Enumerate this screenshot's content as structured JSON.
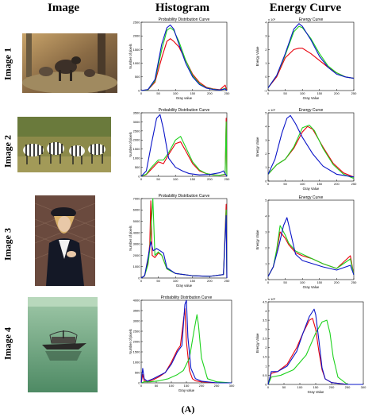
{
  "headers": {
    "image": "Image",
    "histogram": "Histogram",
    "energy": "Energy Curve"
  },
  "rows": [
    {
      "label": "Image 1",
      "photo": "wolves",
      "hist_title": "Probability Distribution Curve",
      "hist_xlabel": "Gray value",
      "hist_ylabel": "Number of pixels",
      "energy_title": "Energy Curve",
      "energy_xlabel": "Gray Value",
      "energy_ylabel": "Energy Value",
      "energy_exp": "x 10⁶"
    },
    {
      "label": "Image 2",
      "photo": "zebras",
      "hist_title": "Probability Distribution Curve",
      "hist_xlabel": "",
      "hist_ylabel": "Number of pixels",
      "energy_title": "Energy Curve",
      "energy_xlabel": "Gray Value",
      "energy_ylabel": "Energy Value",
      "energy_exp": "x 10⁶"
    },
    {
      "label": "Image 3",
      "photo": "portrait",
      "hist_title": "Probability Distribution Curve",
      "hist_xlabel": "Gray value",
      "hist_ylabel": "Number of pixels",
      "energy_title": "Energy Curve",
      "energy_xlabel": "Gray Value",
      "energy_ylabel": "Energy Value",
      "energy_exp": ""
    },
    {
      "label": "Image 4",
      "photo": "boat",
      "hist_title": "Probability Distribution Curve",
      "hist_xlabel": "Gray value",
      "hist_ylabel": "Number of pixels",
      "energy_title": "",
      "energy_xlabel": "Gray Value",
      "energy_ylabel": "Energy Value",
      "energy_exp": "x 10⁶"
    }
  ],
  "caption": "(A)",
  "colors": {
    "red": "#e8000b",
    "green": "#1ed21e",
    "blue": "#0a14c8"
  },
  "chart_data": [
    {
      "type": "line",
      "panel": "Image 1 histogram",
      "title": "Probability Distribution Curve",
      "xlabel": "Gray value",
      "ylabel": "Number of pixels",
      "xlim": [
        0,
        250
      ],
      "ylim": [
        0,
        2500
      ],
      "xticks": [
        0,
        50,
        100,
        150,
        200,
        250
      ],
      "yticks": [
        0,
        500,
        1000,
        1500,
        2000,
        2500
      ],
      "series": [
        {
          "color": "red",
          "x": [
            0,
            20,
            40,
            60,
            75,
            85,
            95,
            110,
            130,
            150,
            170,
            190,
            210,
            230,
            245,
            250
          ],
          "y": [
            0,
            30,
            300,
            1200,
            1800,
            1900,
            1800,
            1600,
            1100,
            600,
            300,
            120,
            60,
            30,
            200,
            0
          ]
        },
        {
          "color": "green",
          "x": [
            0,
            20,
            40,
            60,
            75,
            85,
            95,
            110,
            130,
            150,
            170,
            190,
            210,
            230,
            245,
            250
          ],
          "y": [
            0,
            30,
            350,
            1500,
            2200,
            2300,
            2200,
            1800,
            1100,
            550,
            250,
            100,
            50,
            20,
            80,
            0
          ]
        },
        {
          "color": "blue",
          "x": [
            0,
            20,
            40,
            60,
            75,
            85,
            95,
            110,
            130,
            150,
            170,
            190,
            210,
            230,
            245,
            250
          ],
          "y": [
            0,
            40,
            400,
            1700,
            2300,
            2400,
            2250,
            1700,
            1000,
            500,
            220,
            90,
            40,
            20,
            60,
            0
          ]
        }
      ]
    },
    {
      "type": "line",
      "panel": "Image 1 energy",
      "title": "Energy Curve",
      "xlabel": "Gray Value",
      "ylabel": "Energy Value",
      "xlim": [
        0,
        250
      ],
      "ylim": [
        -1,
        4
      ],
      "xticks": [
        0,
        50,
        100,
        150,
        200,
        250
      ],
      "yticks": [
        -1,
        0,
        1,
        2,
        3,
        4
      ],
      "series": [
        {
          "color": "red",
          "x": [
            0,
            25,
            50,
            75,
            90,
            100,
            125,
            150,
            175,
            200,
            225,
            250
          ],
          "y": [
            -0.8,
            0.0,
            1.4,
            2.0,
            2.1,
            2.1,
            1.7,
            1.2,
            0.7,
            0.3,
            0.0,
            -0.1
          ]
        },
        {
          "color": "green",
          "x": [
            0,
            25,
            50,
            75,
            90,
            100,
            125,
            150,
            175,
            200,
            225,
            250
          ],
          "y": [
            -0.8,
            0.1,
            1.6,
            3.3,
            3.7,
            3.6,
            2.8,
            1.7,
            0.8,
            0.3,
            0.0,
            -0.1
          ]
        },
        {
          "color": "blue",
          "x": [
            0,
            25,
            50,
            75,
            90,
            100,
            125,
            150,
            175,
            200,
            225,
            250
          ],
          "y": [
            -0.8,
            0.1,
            1.7,
            3.5,
            3.9,
            3.7,
            2.7,
            1.5,
            0.7,
            0.2,
            0.0,
            -0.1
          ]
        }
      ]
    },
    {
      "type": "line",
      "panel": "Image 2 histogram",
      "title": "Probability Distribution Curve",
      "xlabel": "",
      "ylabel": "Number of pixels",
      "xlim": [
        0,
        250
      ],
      "ylim": [
        0,
        3500
      ],
      "xticks": [
        0,
        50,
        100,
        150,
        200,
        250
      ],
      "yticks": [
        0,
        500,
        1000,
        1500,
        2000,
        2500,
        3000,
        3500
      ],
      "series": [
        {
          "color": "red",
          "x": [
            0,
            15,
            30,
            50,
            65,
            80,
            100,
            115,
            130,
            150,
            170,
            190,
            210,
            230,
            245,
            248,
            250
          ],
          "y": [
            0,
            100,
            400,
            800,
            700,
            1200,
            1800,
            1900,
            1400,
            700,
            300,
            150,
            80,
            60,
            100,
            3200,
            0
          ]
        },
        {
          "color": "green",
          "x": [
            0,
            15,
            30,
            50,
            65,
            80,
            100,
            115,
            130,
            150,
            170,
            190,
            210,
            230,
            245,
            248,
            250
          ],
          "y": [
            0,
            120,
            500,
            900,
            900,
            1300,
            2000,
            2200,
            1600,
            800,
            350,
            150,
            80,
            60,
            120,
            3000,
            0
          ]
        },
        {
          "color": "blue",
          "x": [
            0,
            15,
            30,
            45,
            55,
            65,
            80,
            100,
            120,
            140,
            170,
            200,
            230,
            240,
            250
          ],
          "y": [
            0,
            300,
            1800,
            3200,
            3400,
            2600,
            1000,
            500,
            300,
            150,
            80,
            100,
            200,
            300,
            0
          ]
        }
      ]
    },
    {
      "type": "line",
      "panel": "Image 2 energy",
      "title": "Energy Curve",
      "xlabel": "Gray Value",
      "ylabel": "Energy Value",
      "xlim": [
        0,
        250
      ],
      "ylim": [
        0,
        5
      ],
      "xticks": [
        0,
        50,
        100,
        150,
        200,
        250
      ],
      "yticks": [
        0,
        1,
        2,
        3,
        4,
        5
      ],
      "series": [
        {
          "color": "red",
          "x": [
            0,
            25,
            50,
            75,
            100,
            115,
            130,
            160,
            190,
            220,
            250
          ],
          "y": [
            0.5,
            1.2,
            1.6,
            2.4,
            3.6,
            4.0,
            3.8,
            2.5,
            1.3,
            0.6,
            0.3
          ]
        },
        {
          "color": "green",
          "x": [
            0,
            25,
            50,
            75,
            100,
            120,
            135,
            160,
            190,
            220,
            250
          ],
          "y": [
            0.5,
            1.2,
            1.6,
            2.5,
            3.9,
            4.1,
            3.7,
            2.4,
            1.2,
            0.5,
            0.2
          ]
        },
        {
          "color": "blue",
          "x": [
            0,
            20,
            40,
            55,
            65,
            80,
            100,
            130,
            160,
            200,
            250
          ],
          "y": [
            0.5,
            1.6,
            3.5,
            4.6,
            4.8,
            4.2,
            3.2,
            2.0,
            1.1,
            0.5,
            0.3
          ]
        }
      ]
    },
    {
      "type": "line",
      "panel": "Image 3 histogram",
      "title": "Probability Distribution Curve",
      "xlabel": "Gray value",
      "ylabel": "Number of pixels",
      "xlim": [
        0,
        250
      ],
      "ylim": [
        0,
        7000
      ],
      "xticks": [
        0,
        50,
        100,
        150,
        200,
        250
      ],
      "yticks": [
        0,
        1000,
        2000,
        3000,
        4000,
        5000,
        6000,
        7000
      ],
      "series": [
        {
          "color": "red",
          "x": [
            0,
            10,
            20,
            25,
            28,
            32,
            40,
            50,
            60,
            75,
            100,
            150,
            200,
            240,
            248,
            250
          ],
          "y": [
            0,
            200,
            1500,
            3000,
            6800,
            2000,
            1800,
            2200,
            2000,
            800,
            400,
            200,
            150,
            300,
            6500,
            0
          ]
        },
        {
          "color": "green",
          "x": [
            0,
            10,
            20,
            25,
            30,
            34,
            40,
            50,
            60,
            75,
            100,
            150,
            200,
            240,
            248,
            250
          ],
          "y": [
            0,
            200,
            1200,
            2500,
            5000,
            7000,
            2000,
            2300,
            2000,
            800,
            400,
            200,
            150,
            300,
            6000,
            0
          ]
        },
        {
          "color": "blue",
          "x": [
            0,
            10,
            20,
            28,
            35,
            45,
            55,
            65,
            75,
            100,
            150,
            200,
            240,
            248,
            250
          ],
          "y": [
            0,
            200,
            1800,
            3200,
            2400,
            2600,
            2400,
            2200,
            900,
            400,
            200,
            150,
            300,
            5500,
            0
          ]
        }
      ]
    },
    {
      "type": "line",
      "panel": "Image 3 energy",
      "title": "Energy Curve",
      "xlabel": "Gray Value",
      "ylabel": "Energy Value",
      "xlim": [
        0,
        250
      ],
      "ylim": [
        0,
        5
      ],
      "xticks": [
        0,
        50,
        100,
        150,
        200,
        250
      ],
      "yticks": [
        0,
        1,
        2,
        3,
        4,
        5
      ],
      "series": [
        {
          "color": "red",
          "x": [
            0,
            15,
            25,
            35,
            50,
            60,
            80,
            100,
            130,
            160,
            200,
            240,
            250
          ],
          "y": [
            0.2,
            0.8,
            1.8,
            3.0,
            2.6,
            2.2,
            1.7,
            1.5,
            1.3,
            1.0,
            0.7,
            1.5,
            0.3
          ]
        },
        {
          "color": "green",
          "x": [
            0,
            15,
            25,
            35,
            50,
            60,
            80,
            100,
            130,
            160,
            200,
            240,
            250
          ],
          "y": [
            0.2,
            0.8,
            1.9,
            3.4,
            2.8,
            2.3,
            1.8,
            1.6,
            1.3,
            1.0,
            0.7,
            1.3,
            0.3
          ]
        },
        {
          "color": "blue",
          "x": [
            0,
            15,
            30,
            45,
            55,
            65,
            80,
            100,
            130,
            160,
            200,
            240,
            250
          ],
          "y": [
            0.2,
            0.8,
            2.0,
            3.4,
            3.9,
            3.0,
            1.6,
            1.2,
            1.0,
            0.8,
            0.6,
            0.9,
            0.3
          ]
        }
      ]
    },
    {
      "type": "line",
      "panel": "Image 4 histogram",
      "title": "Probability Distribution Curve",
      "xlabel": "Gray value",
      "ylabel": "Number of pixels",
      "xlim": [
        0,
        300
      ],
      "ylim": [
        0,
        4000
      ],
      "xticks": [
        0,
        50,
        100,
        150,
        200,
        250,
        300
      ],
      "yticks": [
        0,
        500,
        1000,
        1500,
        2000,
        2500,
        3000,
        3500,
        4000
      ],
      "series": [
        {
          "color": "red",
          "x": [
            0,
            5,
            10,
            20,
            40,
            60,
            80,
            100,
            120,
            130,
            140,
            145,
            150,
            160,
            170,
            180,
            200,
            250,
            300
          ],
          "y": [
            0,
            400,
            100,
            50,
            150,
            300,
            500,
            1000,
            1600,
            1800,
            3000,
            3600,
            2000,
            600,
            200,
            100,
            50,
            0,
            0
          ]
        },
        {
          "color": "green",
          "x": [
            0,
            10,
            30,
            60,
            90,
            120,
            140,
            160,
            175,
            185,
            190,
            200,
            220,
            250,
            300
          ],
          "y": [
            0,
            50,
            50,
            100,
            200,
            400,
            600,
            1200,
            2500,
            3300,
            2800,
            1200,
            200,
            50,
            0
          ]
        },
        {
          "color": "blue",
          "x": [
            0,
            5,
            10,
            20,
            40,
            60,
            80,
            100,
            120,
            135,
            145,
            150,
            155,
            165,
            180,
            200,
            250,
            300
          ],
          "y": [
            0,
            700,
            200,
            80,
            200,
            350,
            500,
            900,
            1500,
            1800,
            3800,
            4000,
            2200,
            700,
            200,
            80,
            0,
            0
          ]
        }
      ]
    },
    {
      "type": "line",
      "panel": "Image 4 energy",
      "title": "",
      "xlabel": "Gray Value",
      "ylabel": "Energy Value",
      "xlim": [
        0,
        300
      ],
      "ylim": [
        0,
        4.5
      ],
      "xticks": [
        0,
        50,
        100,
        150,
        200,
        250,
        300
      ],
      "yticks": [
        0,
        0.5,
        1,
        1.5,
        2,
        2.5,
        3,
        3.5,
        4,
        4.5
      ],
      "series": [
        {
          "color": "red",
          "x": [
            0,
            10,
            30,
            60,
            90,
            110,
            130,
            140,
            150,
            160,
            170,
            180,
            200,
            250,
            300
          ],
          "y": [
            0,
            0.6,
            0.7,
            1.1,
            2.0,
            2.8,
            3.5,
            3.6,
            3.0,
            1.8,
            0.8,
            0.3,
            0.1,
            0.0,
            0.0
          ]
        },
        {
          "color": "green",
          "x": [
            0,
            10,
            40,
            80,
            120,
            150,
            170,
            185,
            195,
            205,
            220,
            250,
            300
          ],
          "y": [
            0,
            0.4,
            0.5,
            0.8,
            1.6,
            2.8,
            3.4,
            3.5,
            2.8,
            1.5,
            0.4,
            0.0,
            0.0
          ]
        },
        {
          "color": "blue",
          "x": [
            0,
            10,
            30,
            60,
            90,
            110,
            130,
            145,
            150,
            160,
            170,
            180,
            200,
            250,
            300
          ],
          "y": [
            0,
            0.7,
            0.7,
            1.0,
            1.8,
            2.8,
            3.7,
            4.1,
            3.8,
            2.4,
            0.9,
            0.3,
            0.1,
            0.0,
            0.0
          ]
        }
      ]
    }
  ]
}
